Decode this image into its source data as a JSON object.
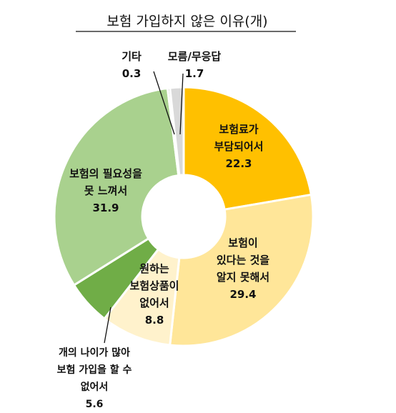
{
  "chart_data": {
    "type": "donut",
    "title": "보험 가입하지 않은 이유(개)",
    "slices": [
      {
        "label": "보험료가 부담되어서",
        "lines": [
          "보험료가",
          "부담되어서"
        ],
        "value": 22.3,
        "color": "#FFC000"
      },
      {
        "label": "보험이 있다는 것을 알지 못해서",
        "lines": [
          "보험이",
          "있다는 것을",
          "알지 못해서"
        ],
        "value": 29.4,
        "color": "#FFE699"
      },
      {
        "label": "원하는 보험상품이 없어서",
        "lines": [
          "원하는",
          "보험상품이",
          "없어서"
        ],
        "value": 8.8,
        "color": "#FFF2CC"
      },
      {
        "label": "개의 나이가 많아 보험 가입을 할 수 없어서",
        "lines": [
          "개의 나이가 많아",
          "보험 가입을 할 수",
          "없어서"
        ],
        "value": 5.6,
        "color": "#70AD47"
      },
      {
        "label": "보험의 필요성을 못 느껴서",
        "lines": [
          "보험의 필요성을",
          "못 느껴서"
        ],
        "value": 31.9,
        "color": "#A9D18E"
      },
      {
        "label": "기타",
        "lines": [
          "기타"
        ],
        "value": 0.3,
        "color": "#A6A6A6"
      },
      {
        "label": "모름/무응답",
        "lines": [
          "모름/무응답"
        ],
        "value": 1.7,
        "color": "#D9D9D9"
      }
    ]
  }
}
